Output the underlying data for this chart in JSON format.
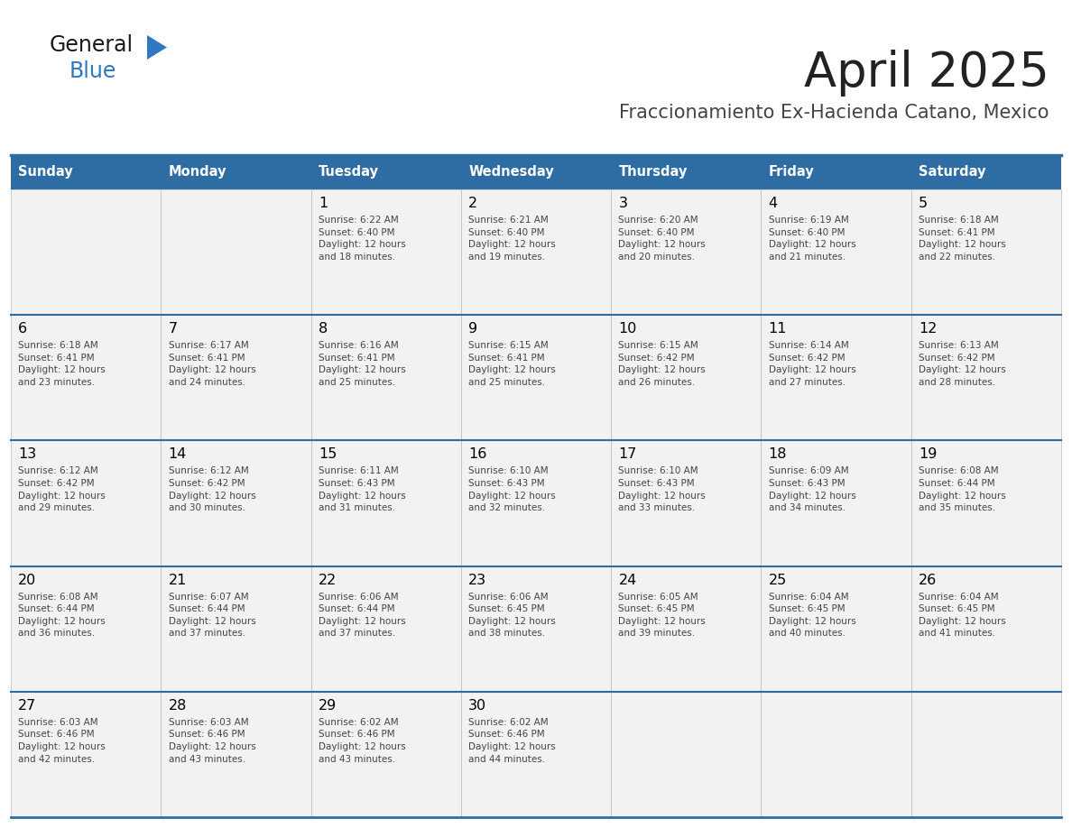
{
  "title": "April 2025",
  "subtitle": "Fraccionamiento Ex-Hacienda Catano, Mexico",
  "header_bg": "#2E6DA4",
  "header_text_color": "#FFFFFF",
  "cell_bg": "#F2F2F2",
  "border_color": "#2E6DA4",
  "cell_border_color": "#BBBBBB",
  "day_headers": [
    "Sunday",
    "Monday",
    "Tuesday",
    "Wednesday",
    "Thursday",
    "Friday",
    "Saturday"
  ],
  "title_color": "#222222",
  "subtitle_color": "#444444",
  "day_number_color": "#000000",
  "cell_text_color": "#444444",
  "logo_general_color": "#1a1a1a",
  "logo_blue_color": "#2E79C0",
  "weeks": [
    [
      {
        "day": "",
        "info": ""
      },
      {
        "day": "",
        "info": ""
      },
      {
        "day": "1",
        "info": "Sunrise: 6:22 AM\nSunset: 6:40 PM\nDaylight: 12 hours\nand 18 minutes."
      },
      {
        "day": "2",
        "info": "Sunrise: 6:21 AM\nSunset: 6:40 PM\nDaylight: 12 hours\nand 19 minutes."
      },
      {
        "day": "3",
        "info": "Sunrise: 6:20 AM\nSunset: 6:40 PM\nDaylight: 12 hours\nand 20 minutes."
      },
      {
        "day": "4",
        "info": "Sunrise: 6:19 AM\nSunset: 6:40 PM\nDaylight: 12 hours\nand 21 minutes."
      },
      {
        "day": "5",
        "info": "Sunrise: 6:18 AM\nSunset: 6:41 PM\nDaylight: 12 hours\nand 22 minutes."
      }
    ],
    [
      {
        "day": "6",
        "info": "Sunrise: 6:18 AM\nSunset: 6:41 PM\nDaylight: 12 hours\nand 23 minutes."
      },
      {
        "day": "7",
        "info": "Sunrise: 6:17 AM\nSunset: 6:41 PM\nDaylight: 12 hours\nand 24 minutes."
      },
      {
        "day": "8",
        "info": "Sunrise: 6:16 AM\nSunset: 6:41 PM\nDaylight: 12 hours\nand 25 minutes."
      },
      {
        "day": "9",
        "info": "Sunrise: 6:15 AM\nSunset: 6:41 PM\nDaylight: 12 hours\nand 25 minutes."
      },
      {
        "day": "10",
        "info": "Sunrise: 6:15 AM\nSunset: 6:42 PM\nDaylight: 12 hours\nand 26 minutes."
      },
      {
        "day": "11",
        "info": "Sunrise: 6:14 AM\nSunset: 6:42 PM\nDaylight: 12 hours\nand 27 minutes."
      },
      {
        "day": "12",
        "info": "Sunrise: 6:13 AM\nSunset: 6:42 PM\nDaylight: 12 hours\nand 28 minutes."
      }
    ],
    [
      {
        "day": "13",
        "info": "Sunrise: 6:12 AM\nSunset: 6:42 PM\nDaylight: 12 hours\nand 29 minutes."
      },
      {
        "day": "14",
        "info": "Sunrise: 6:12 AM\nSunset: 6:42 PM\nDaylight: 12 hours\nand 30 minutes."
      },
      {
        "day": "15",
        "info": "Sunrise: 6:11 AM\nSunset: 6:43 PM\nDaylight: 12 hours\nand 31 minutes."
      },
      {
        "day": "16",
        "info": "Sunrise: 6:10 AM\nSunset: 6:43 PM\nDaylight: 12 hours\nand 32 minutes."
      },
      {
        "day": "17",
        "info": "Sunrise: 6:10 AM\nSunset: 6:43 PM\nDaylight: 12 hours\nand 33 minutes."
      },
      {
        "day": "18",
        "info": "Sunrise: 6:09 AM\nSunset: 6:43 PM\nDaylight: 12 hours\nand 34 minutes."
      },
      {
        "day": "19",
        "info": "Sunrise: 6:08 AM\nSunset: 6:44 PM\nDaylight: 12 hours\nand 35 minutes."
      }
    ],
    [
      {
        "day": "20",
        "info": "Sunrise: 6:08 AM\nSunset: 6:44 PM\nDaylight: 12 hours\nand 36 minutes."
      },
      {
        "day": "21",
        "info": "Sunrise: 6:07 AM\nSunset: 6:44 PM\nDaylight: 12 hours\nand 37 minutes."
      },
      {
        "day": "22",
        "info": "Sunrise: 6:06 AM\nSunset: 6:44 PM\nDaylight: 12 hours\nand 37 minutes."
      },
      {
        "day": "23",
        "info": "Sunrise: 6:06 AM\nSunset: 6:45 PM\nDaylight: 12 hours\nand 38 minutes."
      },
      {
        "day": "24",
        "info": "Sunrise: 6:05 AM\nSunset: 6:45 PM\nDaylight: 12 hours\nand 39 minutes."
      },
      {
        "day": "25",
        "info": "Sunrise: 6:04 AM\nSunset: 6:45 PM\nDaylight: 12 hours\nand 40 minutes."
      },
      {
        "day": "26",
        "info": "Sunrise: 6:04 AM\nSunset: 6:45 PM\nDaylight: 12 hours\nand 41 minutes."
      }
    ],
    [
      {
        "day": "27",
        "info": "Sunrise: 6:03 AM\nSunset: 6:46 PM\nDaylight: 12 hours\nand 42 minutes."
      },
      {
        "day": "28",
        "info": "Sunrise: 6:03 AM\nSunset: 6:46 PM\nDaylight: 12 hours\nand 43 minutes."
      },
      {
        "day": "29",
        "info": "Sunrise: 6:02 AM\nSunset: 6:46 PM\nDaylight: 12 hours\nand 43 minutes."
      },
      {
        "day": "30",
        "info": "Sunrise: 6:02 AM\nSunset: 6:46 PM\nDaylight: 12 hours\nand 44 minutes."
      },
      {
        "day": "",
        "info": ""
      },
      {
        "day": "",
        "info": ""
      },
      {
        "day": "",
        "info": ""
      }
    ]
  ]
}
